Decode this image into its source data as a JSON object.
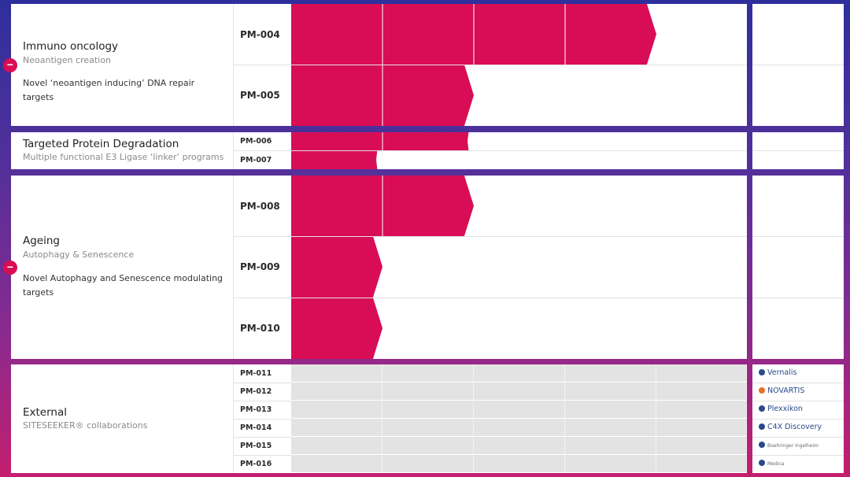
{
  "colors": {
    "accent": "#d90d55",
    "panel": "#ffffff",
    "grid_gray": "#e3e3e3"
  },
  "groups": {
    "immuno": {
      "title": "Immuno oncology",
      "subtitle": "Neoantigen creation",
      "description": "Novel ‘neoantigen inducing’ DNA repair targets"
    },
    "tpd": {
      "title": "Targeted Protein Degradation",
      "subtitle": "Multiple functional E3 Ligase ‘linker’ programs"
    },
    "ageing": {
      "title": "Ageing",
      "subtitle": "Autophagy & Senescence",
      "description": "Novel Autophagy and Senescence modulating targets"
    },
    "external": {
      "title": "External",
      "subtitle": "SITESEEKER® collaborations"
    }
  },
  "collapse_symbol": "−",
  "partners": [
    {
      "name": "Vernalis",
      "icon": "vernalis-logo-icon"
    },
    {
      "name": "NOVARTIS",
      "icon": "novartis-logo-icon"
    },
    {
      "name": "Plexxikon",
      "icon": "plexxikon-logo-icon"
    },
    {
      "name": "C4X Discovery",
      "icon": "c4x-logo-icon"
    },
    {
      "name": "Boehringer Ingelheim",
      "icon": "boehringer-logo-icon"
    },
    {
      "name": "Medica",
      "icon": "medica-logo-icon"
    }
  ],
  "chart_data": {
    "type": "bar",
    "orientation": "horizontal",
    "stage_count": 5,
    "categories": [
      "PM-004",
      "PM-005",
      "PM-006",
      "PM-007",
      "PM-008",
      "PM-009",
      "PM-010",
      "PM-011",
      "PM-012",
      "PM-013",
      "PM-014",
      "PM-015",
      "PM-016"
    ],
    "values": [
      4,
      2,
      2,
      1,
      2,
      1,
      1,
      0,
      0,
      0,
      0,
      0,
      0
    ],
    "xlim": [
      0,
      5
    ]
  }
}
